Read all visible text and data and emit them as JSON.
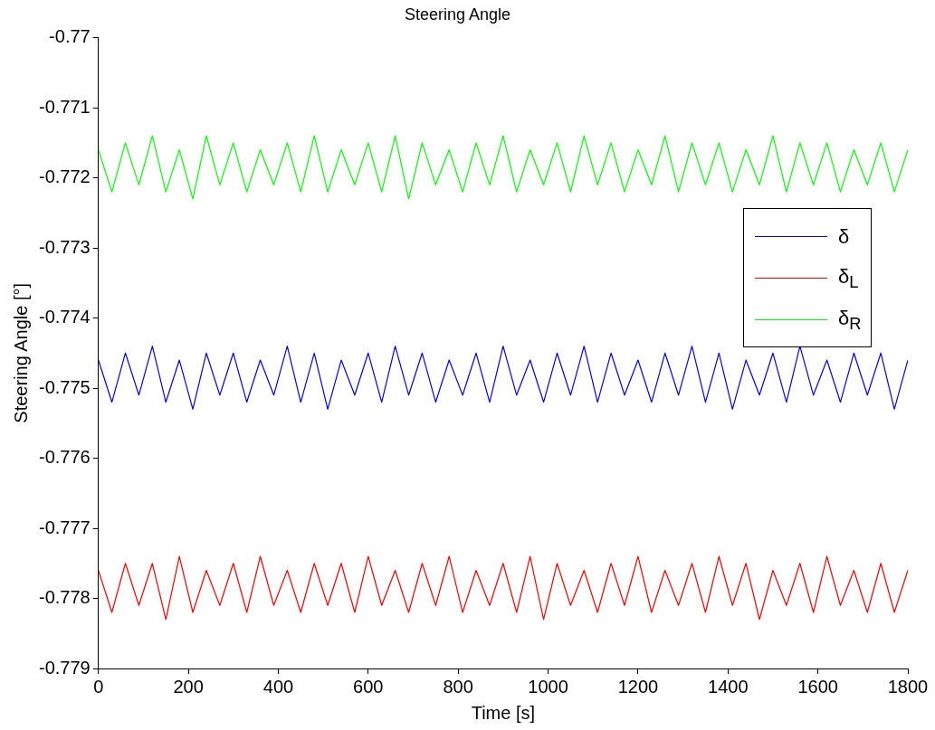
{
  "chart_data": {
    "type": "line",
    "title": "Steering Angle",
    "xlabel": "Time [s]",
    "ylabel": "Steering Angle [°]",
    "x": [
      0,
      30,
      60,
      90,
      120,
      150,
      180,
      210,
      240,
      270,
      300,
      330,
      360,
      390,
      420,
      450,
      480,
      510,
      540,
      570,
      600,
      630,
      660,
      690,
      720,
      750,
      780,
      810,
      840,
      870,
      900,
      930,
      960,
      990,
      1020,
      1050,
      1080,
      1110,
      1140,
      1170,
      1200,
      1230,
      1260,
      1290,
      1320,
      1350,
      1380,
      1410,
      1440,
      1470,
      1500,
      1530,
      1560,
      1590,
      1620,
      1650,
      1680,
      1710,
      1740,
      1770,
      1800
    ],
    "series": [
      {
        "name": "δ",
        "color": "#0000ff",
        "values": [
          -0.7746,
          -0.7752,
          -0.7745,
          -0.7751,
          -0.7744,
          -0.7752,
          -0.7746,
          -0.7753,
          -0.7745,
          -0.7751,
          -0.7745,
          -0.7752,
          -0.7746,
          -0.7751,
          -0.7744,
          -0.7752,
          -0.7745,
          -0.7753,
          -0.7746,
          -0.7751,
          -0.7745,
          -0.7752,
          -0.7744,
          -0.7751,
          -0.7745,
          -0.7752,
          -0.7746,
          -0.7751,
          -0.7745,
          -0.7752,
          -0.7744,
          -0.7751,
          -0.7746,
          -0.7752,
          -0.7745,
          -0.7751,
          -0.7744,
          -0.7752,
          -0.7745,
          -0.7751,
          -0.7746,
          -0.7752,
          -0.7745,
          -0.7751,
          -0.7744,
          -0.7752,
          -0.7745,
          -0.7753,
          -0.7746,
          -0.7751,
          -0.7745,
          -0.7752,
          -0.7744,
          -0.7751,
          -0.7746,
          -0.7752,
          -0.7745,
          -0.7751,
          -0.7745,
          -0.7753,
          -0.7746
        ]
      },
      {
        "name": "δ$_{L}$",
        "color": "#ff0000",
        "values": [
          -0.7776,
          -0.7782,
          -0.7775,
          -0.7781,
          -0.7775,
          -0.7783,
          -0.7774,
          -0.7782,
          -0.7776,
          -0.7781,
          -0.7775,
          -0.7782,
          -0.7774,
          -0.7781,
          -0.7776,
          -0.7782,
          -0.7775,
          -0.7781,
          -0.7775,
          -0.7782,
          -0.7774,
          -0.7781,
          -0.7776,
          -0.7782,
          -0.7775,
          -0.7781,
          -0.7774,
          -0.7782,
          -0.7776,
          -0.7781,
          -0.7775,
          -0.7782,
          -0.7774,
          -0.7783,
          -0.7775,
          -0.7781,
          -0.7776,
          -0.7782,
          -0.7775,
          -0.7781,
          -0.7774,
          -0.7782,
          -0.7776,
          -0.7781,
          -0.7775,
          -0.7782,
          -0.7774,
          -0.7781,
          -0.7775,
          -0.7783,
          -0.7776,
          -0.7781,
          -0.7775,
          -0.7782,
          -0.7774,
          -0.7781,
          -0.7776,
          -0.7782,
          -0.7775,
          -0.7782,
          -0.7776
        ]
      },
      {
        "name": "δ$_{R}$",
        "color": "#00ff00",
        "values": [
          -0.7716,
          -0.7722,
          -0.7715,
          -0.7721,
          -0.7714,
          -0.7722,
          -0.7716,
          -0.7723,
          -0.7714,
          -0.7721,
          -0.7715,
          -0.7722,
          -0.7716,
          -0.7721,
          -0.7715,
          -0.7722,
          -0.7714,
          -0.7722,
          -0.7716,
          -0.7721,
          -0.7715,
          -0.7722,
          -0.7714,
          -0.7723,
          -0.7715,
          -0.7721,
          -0.7716,
          -0.7722,
          -0.7715,
          -0.7721,
          -0.7714,
          -0.7722,
          -0.7716,
          -0.7721,
          -0.7715,
          -0.7722,
          -0.7714,
          -0.7721,
          -0.7715,
          -0.7722,
          -0.7716,
          -0.7721,
          -0.7714,
          -0.7722,
          -0.7715,
          -0.7721,
          -0.7715,
          -0.7722,
          -0.7716,
          -0.7721,
          -0.7714,
          -0.7722,
          -0.7715,
          -0.7721,
          -0.7715,
          -0.7722,
          -0.7716,
          -0.7721,
          -0.7715,
          -0.7722,
          -0.7716
        ]
      }
    ],
    "xlim": [
      0,
      1800
    ],
    "xticks": [
      0,
      200,
      400,
      600,
      800,
      1000,
      1200,
      1400,
      1600,
      1800
    ],
    "ylim": [
      -0.779,
      -0.77
    ],
    "yticks": [
      -0.779,
      -0.778,
      -0.777,
      -0.776,
      -0.775,
      -0.774,
      -0.773,
      -0.772,
      -0.771,
      -0.77
    ],
    "legend": "right"
  }
}
